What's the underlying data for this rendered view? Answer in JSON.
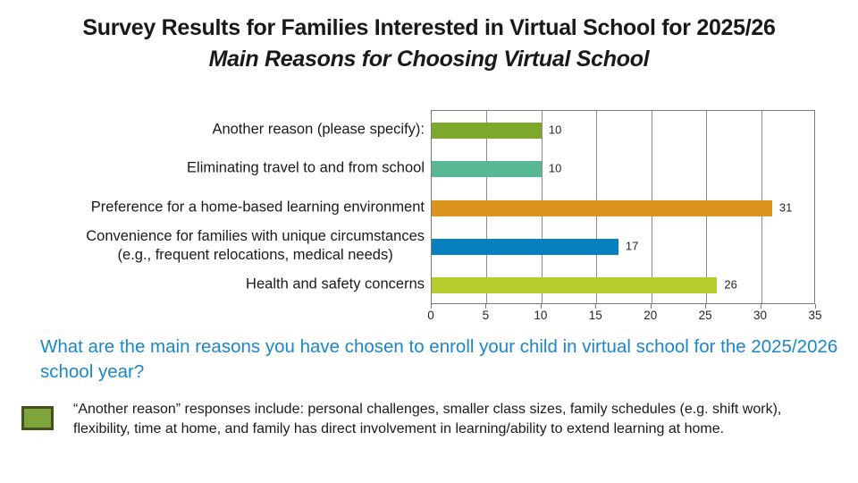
{
  "title": {
    "line1": "Survey Results for Families Interested in Virtual School for 2025/26",
    "line2": "Main Reasons for Choosing Virtual School"
  },
  "chart_data": {
    "type": "bar",
    "orientation": "horizontal",
    "title": "",
    "xlabel": "",
    "ylabel": "",
    "xlim": [
      0,
      35
    ],
    "xticks": [
      0,
      5,
      10,
      15,
      20,
      25,
      30,
      35
    ],
    "grid": true,
    "legend": "none",
    "categories": [
      "Another reason (please specify):",
      "Eliminating travel to and from school",
      "Preference for a home-based learning environment",
      "Convenience for families with unique circumstances\n(e.g., frequent relocations, medical needs)",
      "Health and safety concerns"
    ],
    "values": [
      10,
      10,
      31,
      17,
      26
    ],
    "value_labels": [
      "10",
      "10",
      "31",
      "17",
      "26"
    ],
    "bar_colors": [
      "#7CA82C",
      "#57B893",
      "#DC941F",
      "#0680BF",
      "#B5CC2C"
    ],
    "gridline_color": "#8c8c8c",
    "frame_color": "#7a7a7a"
  },
  "question": {
    "text": "What are the main reasons you have chosen to enroll your child in virtual school for the 2025/2026 school year?",
    "color": "#1B86C8"
  },
  "note": {
    "text": "“Another reason” responses include: personal challenges, smaller class sizes, family schedules (e.g. shift work), flexibility, time at home, and family has direct involvement in learning/ability to extend learning at home.",
    "swatch_fill": "#7EA43C",
    "swatch_border": "#44511A"
  }
}
